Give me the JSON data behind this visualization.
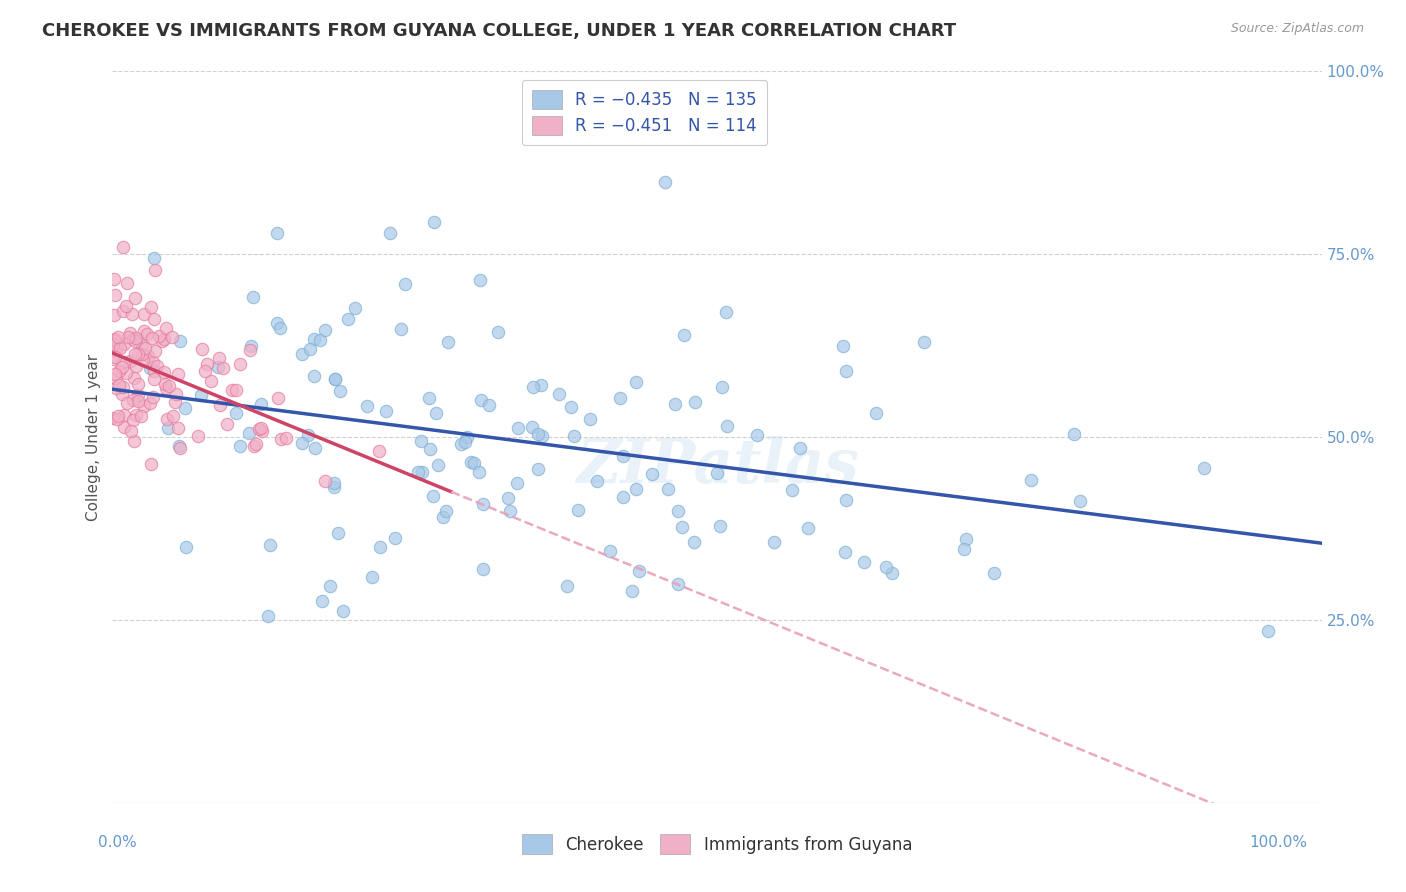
{
  "title": "CHEROKEE VS IMMIGRANTS FROM GUYANA COLLEGE, UNDER 1 YEAR CORRELATION CHART",
  "source": "Source: ZipAtlas.com",
  "ylabel": "College, Under 1 year",
  "watermark": "ZIPatlas",
  "cherokee_color": "#7bafd4",
  "guyana_color": "#e8789a",
  "cherokee_fill": "#a8c8e8",
  "guyana_fill": "#f0b0c8",
  "cherokee_line_color": "#3355aa",
  "guyana_solid_color": "#cc4466",
  "guyana_dash_color": "#e8a0b8",
  "R_cherokee": -0.435,
  "N_cherokee": 135,
  "R_guyana": -0.451,
  "N_guyana": 114,
  "background_color": "#ffffff",
  "grid_color": "#cccccc",
  "axis_label_color": "#6699cc",
  "title_fontsize": 13,
  "source_fontsize": 9,
  "legend_fontsize": 12,
  "tick_fontsize": 11,
  "ylabel_fontsize": 11,
  "seed_cherokee": 42,
  "seed_guyana": 7
}
